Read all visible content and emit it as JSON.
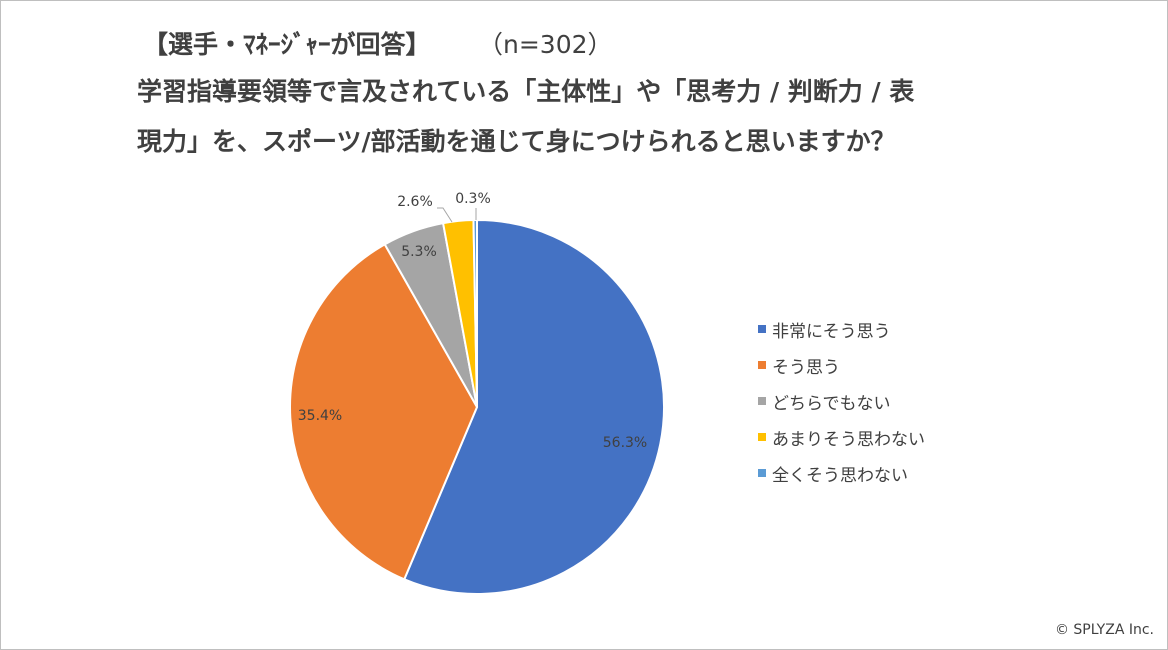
{
  "header": {
    "respondent": "【選手・ﾏﾈｰｼﾞｬｰが回答】",
    "sample": "（n=302）",
    "question_line1": "学習指導要領等で言及されている「主体性」や「思考力 / 判断力 / 表",
    "question_line2": "現力」を、スポーツ/部活動を通じて身につけられると思いますか？"
  },
  "chart_data": {
    "type": "pie",
    "categories": [
      "非常にそう思う",
      "そう思う",
      "どちらでもない",
      "あまりそう思わない",
      "全くそう思わない"
    ],
    "values": [
      56.3,
      35.4,
      5.3,
      2.6,
      0.3
    ],
    "labels": [
      "56.3%",
      "35.4%",
      "5.3%",
      "2.6%",
      "0.3%"
    ],
    "colors": [
      "#4472c4",
      "#ed7d31",
      "#a5a5a5",
      "#ffc000",
      "#5b9bd5"
    ],
    "legend_position": "right"
  },
  "footer": {
    "copyright": "© SPLYZA Inc."
  }
}
